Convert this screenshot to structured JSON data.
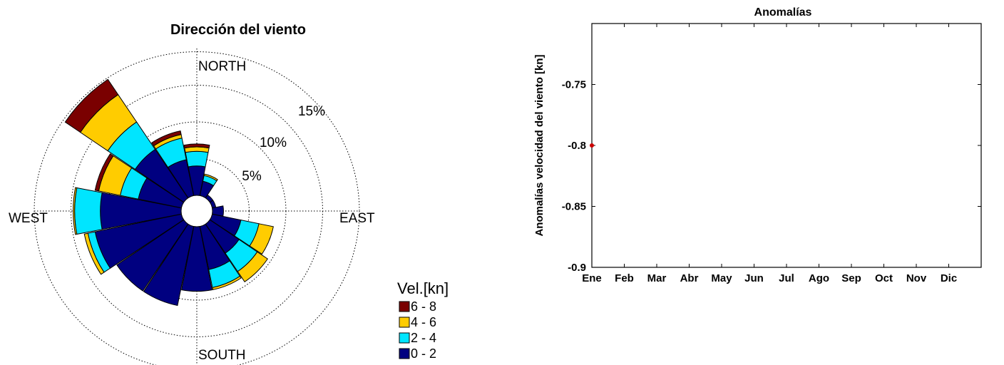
{
  "chart_data": [
    {
      "type": "wind-rose",
      "title": "Dirección del viento",
      "direction_labels": {
        "north": "NORTH",
        "east": "EAST",
        "south": "SOUTH",
        "west": "WEST"
      },
      "ring_labels": [
        "5%",
        "10%",
        "15%"
      ],
      "ring_values": [
        5,
        10,
        15,
        20
      ],
      "legend_title": "Vel.[kn]",
      "speed_bins": [
        {
          "label": "6 - 8",
          "color": "#7a0000"
        },
        {
          "label": "4 - 6",
          "color": "#ffcc00"
        },
        {
          "label": "2 - 4",
          "color": "#00e5ff"
        },
        {
          "label": "0 - 2",
          "color": "#000080"
        }
      ],
      "sector_width_deg": 22.5,
      "sectors": [
        {
          "dir_deg": 0,
          "cumulative": [
            4.0,
            6.0,
            6.6,
            7.0
          ]
        },
        {
          "dir_deg": 22.5,
          "cumulative": [
            2.0,
            2.8,
            3.0,
            3.0
          ]
        },
        {
          "dir_deg": 45,
          "cumulative": [
            0.5,
            0.5,
            0.5,
            0.5
          ]
        },
        {
          "dir_deg": 67.5,
          "cumulative": [
            0.5,
            0.5,
            0.5,
            0.5
          ]
        },
        {
          "dir_deg": 90,
          "cumulative": [
            1.5,
            1.5,
            1.5,
            1.5
          ]
        },
        {
          "dir_deg": 112.5,
          "cumulative": [
            4.0,
            6.5,
            8.5,
            8.5
          ]
        },
        {
          "dir_deg": 135,
          "cumulative": [
            4.8,
            7.8,
            9.5,
            9.5
          ]
        },
        {
          "dir_deg": 157.5,
          "cumulative": [
            6.0,
            8.5,
            8.8,
            8.8
          ]
        },
        {
          "dir_deg": 180,
          "cumulative": [
            8.8,
            8.8,
            8.8,
            8.8
          ]
        },
        {
          "dir_deg": 202.5,
          "cumulative": [
            11.0,
            11.0,
            11.0,
            11.0
          ]
        },
        {
          "dir_deg": 225,
          "cumulative": [
            11.0,
            11.0,
            11.0,
            11.0
          ]
        },
        {
          "dir_deg": 247.5,
          "cumulative": [
            12.0,
            13.0,
            13.5,
            13.5
          ]
        },
        {
          "dir_deg": 270,
          "cumulative": [
            11.0,
            14.5,
            14.7,
            14.7
          ]
        },
        {
          "dir_deg": 292.5,
          "cumulative": [
            6.0,
            8.5,
            11.5,
            12.0
          ]
        },
        {
          "dir_deg": 315,
          "cumulative": [
            8.0,
            12.5,
            17.0,
            19.5
          ]
        },
        {
          "dir_deg": 337.5,
          "cumulative": [
            5.0,
            8.0,
            8.5,
            9.0
          ]
        }
      ]
    },
    {
      "type": "scatter",
      "title": "Anomalías",
      "xlabel": "",
      "ylabel": "Anomalías velocidad del viento [kn]",
      "categories": [
        "Ene",
        "Feb",
        "Mar",
        "Abr",
        "May",
        "Jun",
        "Jul",
        "Ago",
        "Sep",
        "Oct",
        "Nov",
        "Dic"
      ],
      "yticks": [
        -0.9,
        -0.85,
        -0.8,
        -0.75
      ],
      "ytick_labels": [
        "-0.9",
        "-0.85",
        "-0.8",
        "-0.75"
      ],
      "ylim": [
        -0.9,
        -0.7
      ],
      "points": [
        {
          "x": "Ene",
          "y": -0.8
        }
      ],
      "point_color": "#cc0000",
      "grid": false
    }
  ]
}
